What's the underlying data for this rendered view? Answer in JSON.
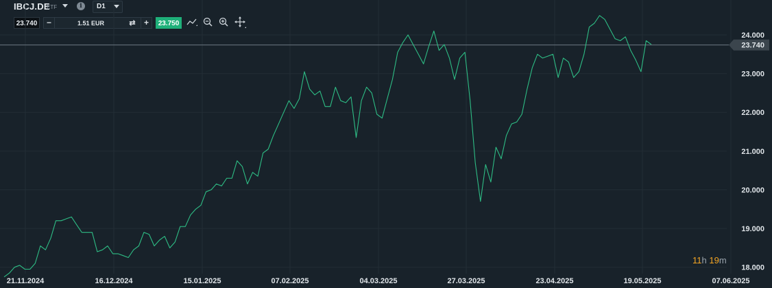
{
  "header": {
    "symbol": "IBCJ.DE",
    "symbol_type": "ETF",
    "info_glyph": "i",
    "timeframe": "D1"
  },
  "trade": {
    "bid": "23.740",
    "minus": "−",
    "quantity": "1.51 EUR",
    "swap_glyph": "⇄",
    "plus": "+",
    "ask": "23.750"
  },
  "countdown": {
    "hours": "11",
    "h": "h",
    "minutes": "19",
    "m": "m"
  },
  "colors": {
    "line": "#2ebd85",
    "bg": "#18222a",
    "ask": "#1fb07a",
    "current_label_bg": "#3b454d",
    "countdown_accent": "#f5a623"
  },
  "chart_data": {
    "type": "line",
    "ylim": [
      17.8,
      24.6
    ],
    "yticks": [
      18,
      19,
      20,
      21,
      22,
      23,
      24
    ],
    "ytick_labels": [
      "18.000",
      "19.000",
      "20.000",
      "21.000",
      "22.000",
      "23.000",
      "24.000"
    ],
    "xlabels": [
      "21.11.2024",
      "16.12.2024",
      "15.01.2025",
      "07.02.2025",
      "04.03.2025",
      "27.03.2025",
      "23.04.2025",
      "19.05.2025",
      "07.06.2025"
    ],
    "current_price": 23.74,
    "current_price_label": "23.740",
    "grid": true,
    "series": [
      {
        "values": [
          17.75,
          17.85,
          18.0,
          18.05,
          17.95,
          17.95,
          18.1,
          18.55,
          18.45,
          18.75,
          19.2,
          19.2,
          19.25,
          19.3,
          19.1,
          18.9,
          18.9,
          18.9,
          18.4,
          18.45,
          18.55,
          18.35,
          18.35,
          18.3,
          18.25,
          18.45,
          18.55,
          18.9,
          18.85,
          18.55,
          18.7,
          18.8,
          18.5,
          18.65,
          19.05,
          19.05,
          19.35,
          19.5,
          19.6,
          19.95,
          20.0,
          20.15,
          20.1,
          20.3,
          20.3,
          20.75,
          20.6,
          20.15,
          20.45,
          20.35,
          20.95,
          21.05,
          21.4,
          21.7,
          22.0,
          22.3,
          22.1,
          22.35,
          23.05,
          22.6,
          22.45,
          22.55,
          22.15,
          22.15,
          22.65,
          22.3,
          22.25,
          22.4,
          21.35,
          22.3,
          22.65,
          22.5,
          21.95,
          21.85,
          22.35,
          22.85,
          23.55,
          23.8,
          24.0,
          23.75,
          23.5,
          23.25,
          23.7,
          24.1,
          23.6,
          23.75,
          23.4,
          22.85,
          23.4,
          23.55,
          22.3,
          20.7,
          19.7,
          20.65,
          20.2,
          21.1,
          20.8,
          21.4,
          21.7,
          21.75,
          21.95,
          22.6,
          23.15,
          23.5,
          23.4,
          23.45,
          23.5,
          22.9,
          23.4,
          23.3,
          22.9,
          23.05,
          23.5,
          24.2,
          24.3,
          24.5,
          24.4,
          24.15,
          23.9,
          23.85,
          23.95,
          23.6,
          23.35,
          23.05,
          23.85,
          23.75
        ]
      }
    ]
  }
}
